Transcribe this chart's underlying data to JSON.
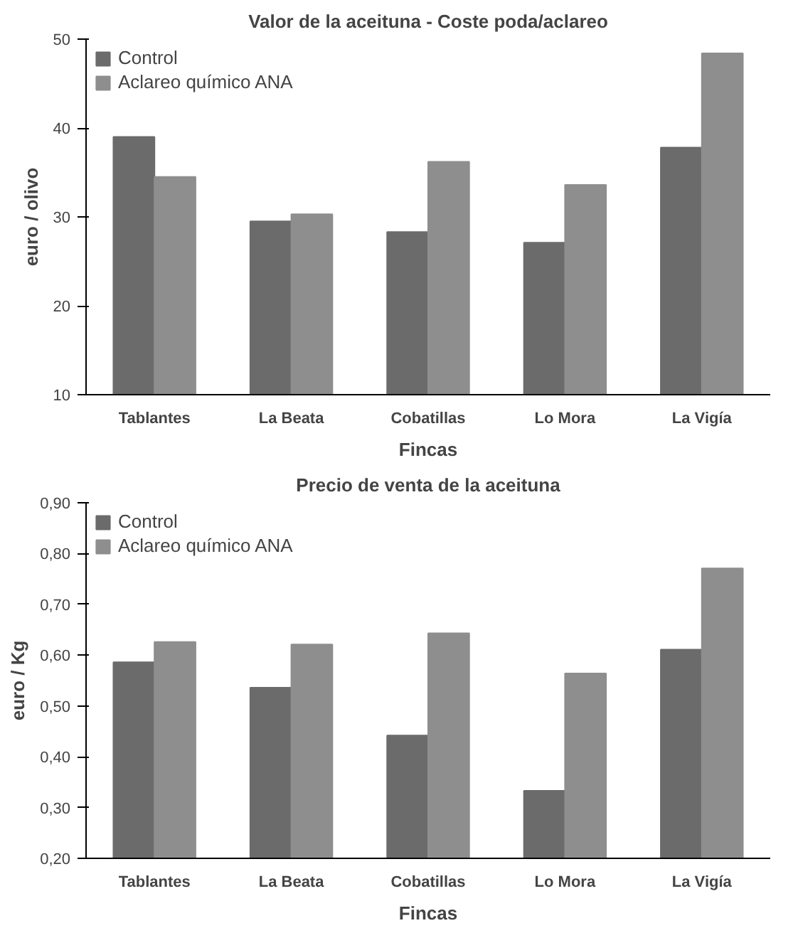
{
  "chart_data": [
    {
      "type": "bar",
      "title": "Valor de la aceituna - Coste poda/aclareo",
      "xlabel": "Fincas",
      "ylabel": "euro / olivo",
      "categories": [
        "Tablantes",
        "La Beata",
        "Cobatillas",
        "Lo Mora",
        "La Vigía"
      ],
      "series": [
        {
          "name": "Control",
          "color": "#6b6b6b",
          "values": [
            39.0,
            29.5,
            28.3,
            27.1,
            37.8
          ]
        },
        {
          "name": "Aclareo químico ANA",
          "color": "#8e8e8e",
          "values": [
            34.5,
            30.3,
            36.2,
            33.6,
            48.4
          ]
        }
      ],
      "ylim": [
        10,
        50
      ],
      "yticks": [
        10,
        20,
        30,
        40,
        50
      ],
      "grid": false,
      "legend": "top left"
    },
    {
      "type": "bar",
      "title": "Precio de venta de la aceituna",
      "xlabel": "Fincas",
      "ylabel": "euro / Kg",
      "categories": [
        "Tablantes",
        "La Beata",
        "Cobatillas",
        "Lo Mora",
        "La Vigía"
      ],
      "series": [
        {
          "name": "Control",
          "color": "#6b6b6b",
          "values": [
            0.586,
            0.536,
            0.442,
            0.333,
            0.611
          ]
        },
        {
          "name": "Aclareo químico ANA",
          "color": "#8e8e8e",
          "values": [
            0.626,
            0.621,
            0.643,
            0.564,
            0.771
          ]
        }
      ],
      "ylim": [
        0.2,
        0.9
      ],
      "yticks": [
        {
          "value": 0.2,
          "label": "0,20"
        },
        {
          "value": 0.3,
          "label": "0,30"
        },
        {
          "value": 0.4,
          "label": "0,40"
        },
        {
          "value": 0.5,
          "label": "0,50"
        },
        {
          "value": 0.6,
          "label": "0,60"
        },
        {
          "value": 0.7,
          "label": "0,70"
        },
        {
          "value": 0.8,
          "label": "0,80"
        },
        {
          "value": 0.9,
          "label": "0,90"
        }
      ],
      "grid": false,
      "legend": "top left"
    }
  ]
}
